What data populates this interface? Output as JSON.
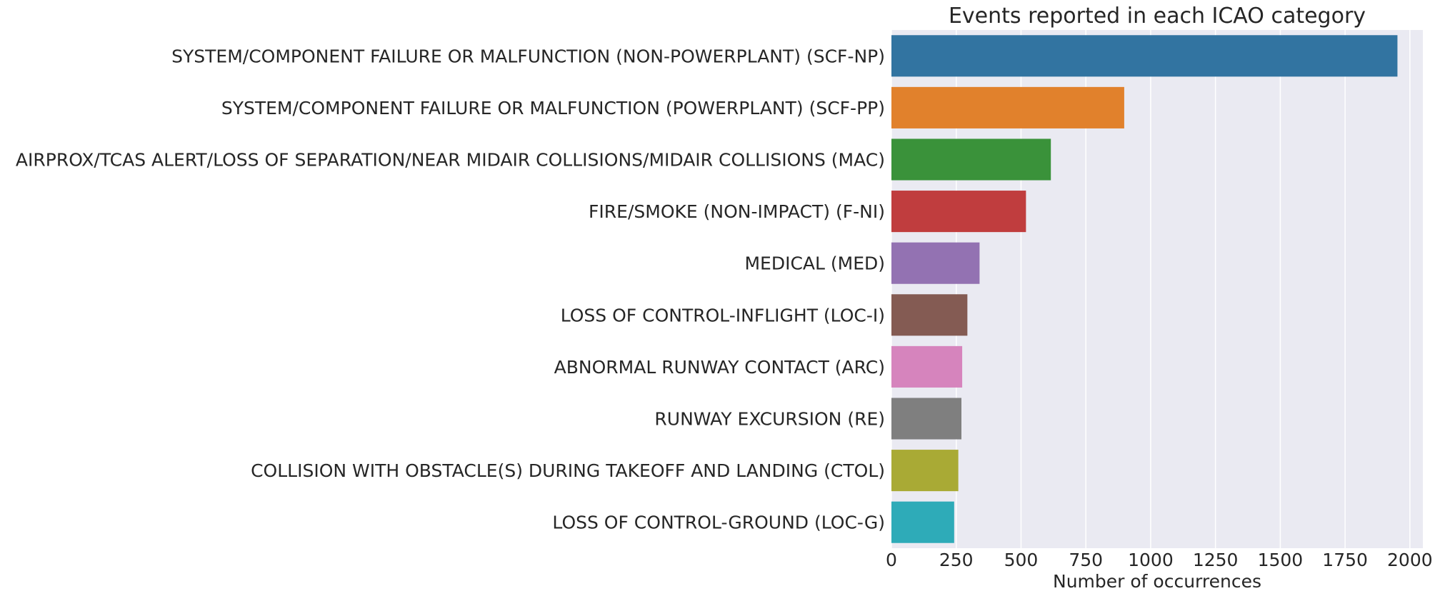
{
  "chart_data": {
    "type": "bar",
    "orientation": "horizontal",
    "title": "Events reported in each ICAO category",
    "xlabel": "Number of occurrences",
    "ylabel": "",
    "xlim": [
      0,
      2050
    ],
    "x_ticks": [
      0,
      250,
      500,
      750,
      1000,
      1250,
      1500,
      1750,
      2000
    ],
    "grid": true,
    "background": "#eaeaf2",
    "categories": [
      "SYSTEM/COMPONENT FAILURE OR MALFUNCTION (NON-POWERPLANT) (SCF-NP)",
      "SYSTEM/COMPONENT FAILURE OR MALFUNCTION (POWERPLANT) (SCF-PP)",
      "AIRPROX/TCAS ALERT/LOSS OF SEPARATION/NEAR MIDAIR COLLISIONS/MIDAIR COLLISIONS (MAC)",
      "FIRE/SMOKE (NON-IMPACT) (F-NI)",
      "MEDICAL (MED)",
      "LOSS OF CONTROL-INFLIGHT (LOC-I)",
      "ABNORMAL RUNWAY CONTACT (ARC)",
      "RUNWAY EXCURSION (RE)",
      "COLLISION WITH OBSTACLE(S) DURING TAKEOFF AND LANDING (CTOL)",
      "LOSS OF CONTROL-GROUND (LOC-G)"
    ],
    "values": [
      1952,
      898,
      615,
      519,
      340,
      293,
      273,
      270,
      258,
      242
    ],
    "colors": [
      "#3274a1",
      "#e1812c",
      "#3a923a",
      "#c03d3e",
      "#9372b2",
      "#845b53",
      "#d684bd",
      "#7f7f7f",
      "#a9aa35",
      "#2eabb8"
    ]
  }
}
